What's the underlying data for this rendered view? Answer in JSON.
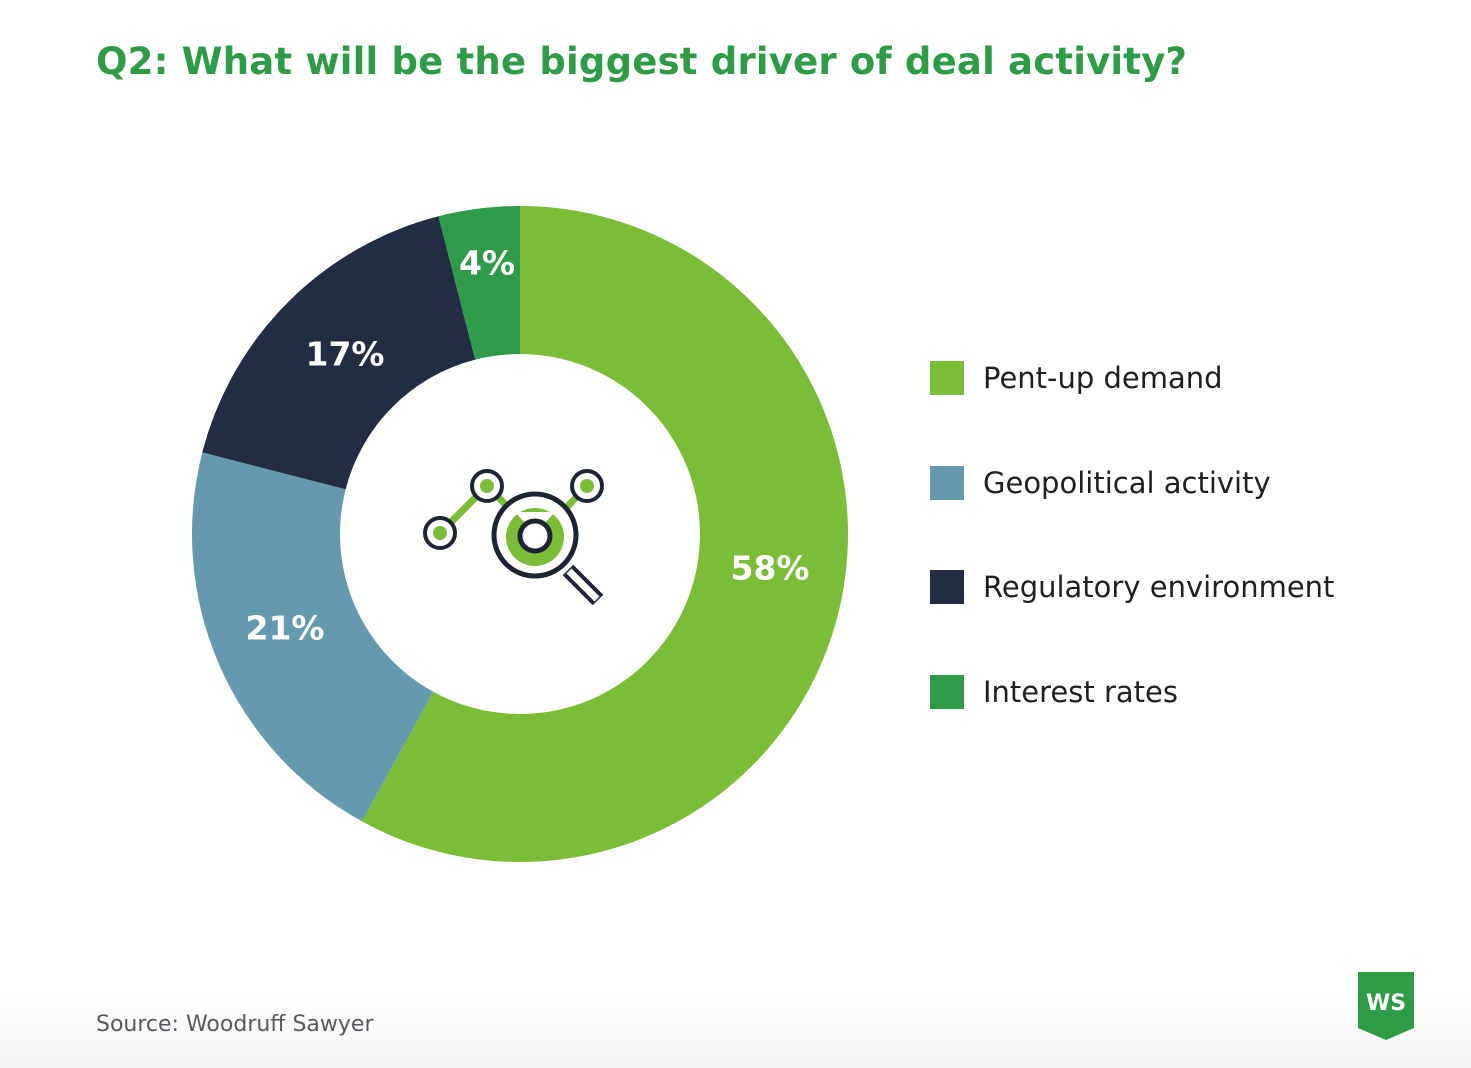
{
  "page": {
    "title": "Q2: What will be the biggest driver of deal activity?",
    "source": "Source: Woodruff Sawyer",
    "logo_text": "WS",
    "center_icon": "magnifier-network-icon"
  },
  "colors": {
    "title": "#2e9b47",
    "pent_up_demand": "#7bbd36",
    "geopolitical_activity": "#6499ae",
    "regulatory_environment": "#222c43",
    "interest_rates": "#2f9b4a",
    "logo": "#2e9b47",
    "icon_dark": "#1d2534",
    "icon_green": "#7bbd36"
  },
  "chart_data": {
    "type": "pie",
    "donut": true,
    "title": "Q2: What will be the biggest driver of deal activity?",
    "legend_position": "right",
    "unit": "%",
    "series": [
      {
        "name": "Pent-up demand",
        "value": 58,
        "label": "58%",
        "color": "#7bbd36"
      },
      {
        "name": "Geopolitical activity",
        "value": 21,
        "label": "21%",
        "color": "#6499ae"
      },
      {
        "name": "Regulatory environment",
        "value": 17,
        "label": "17%",
        "color": "#222c43"
      },
      {
        "name": "Interest rates",
        "value": 4,
        "label": "4%",
        "color": "#2f9b4a"
      }
    ]
  }
}
